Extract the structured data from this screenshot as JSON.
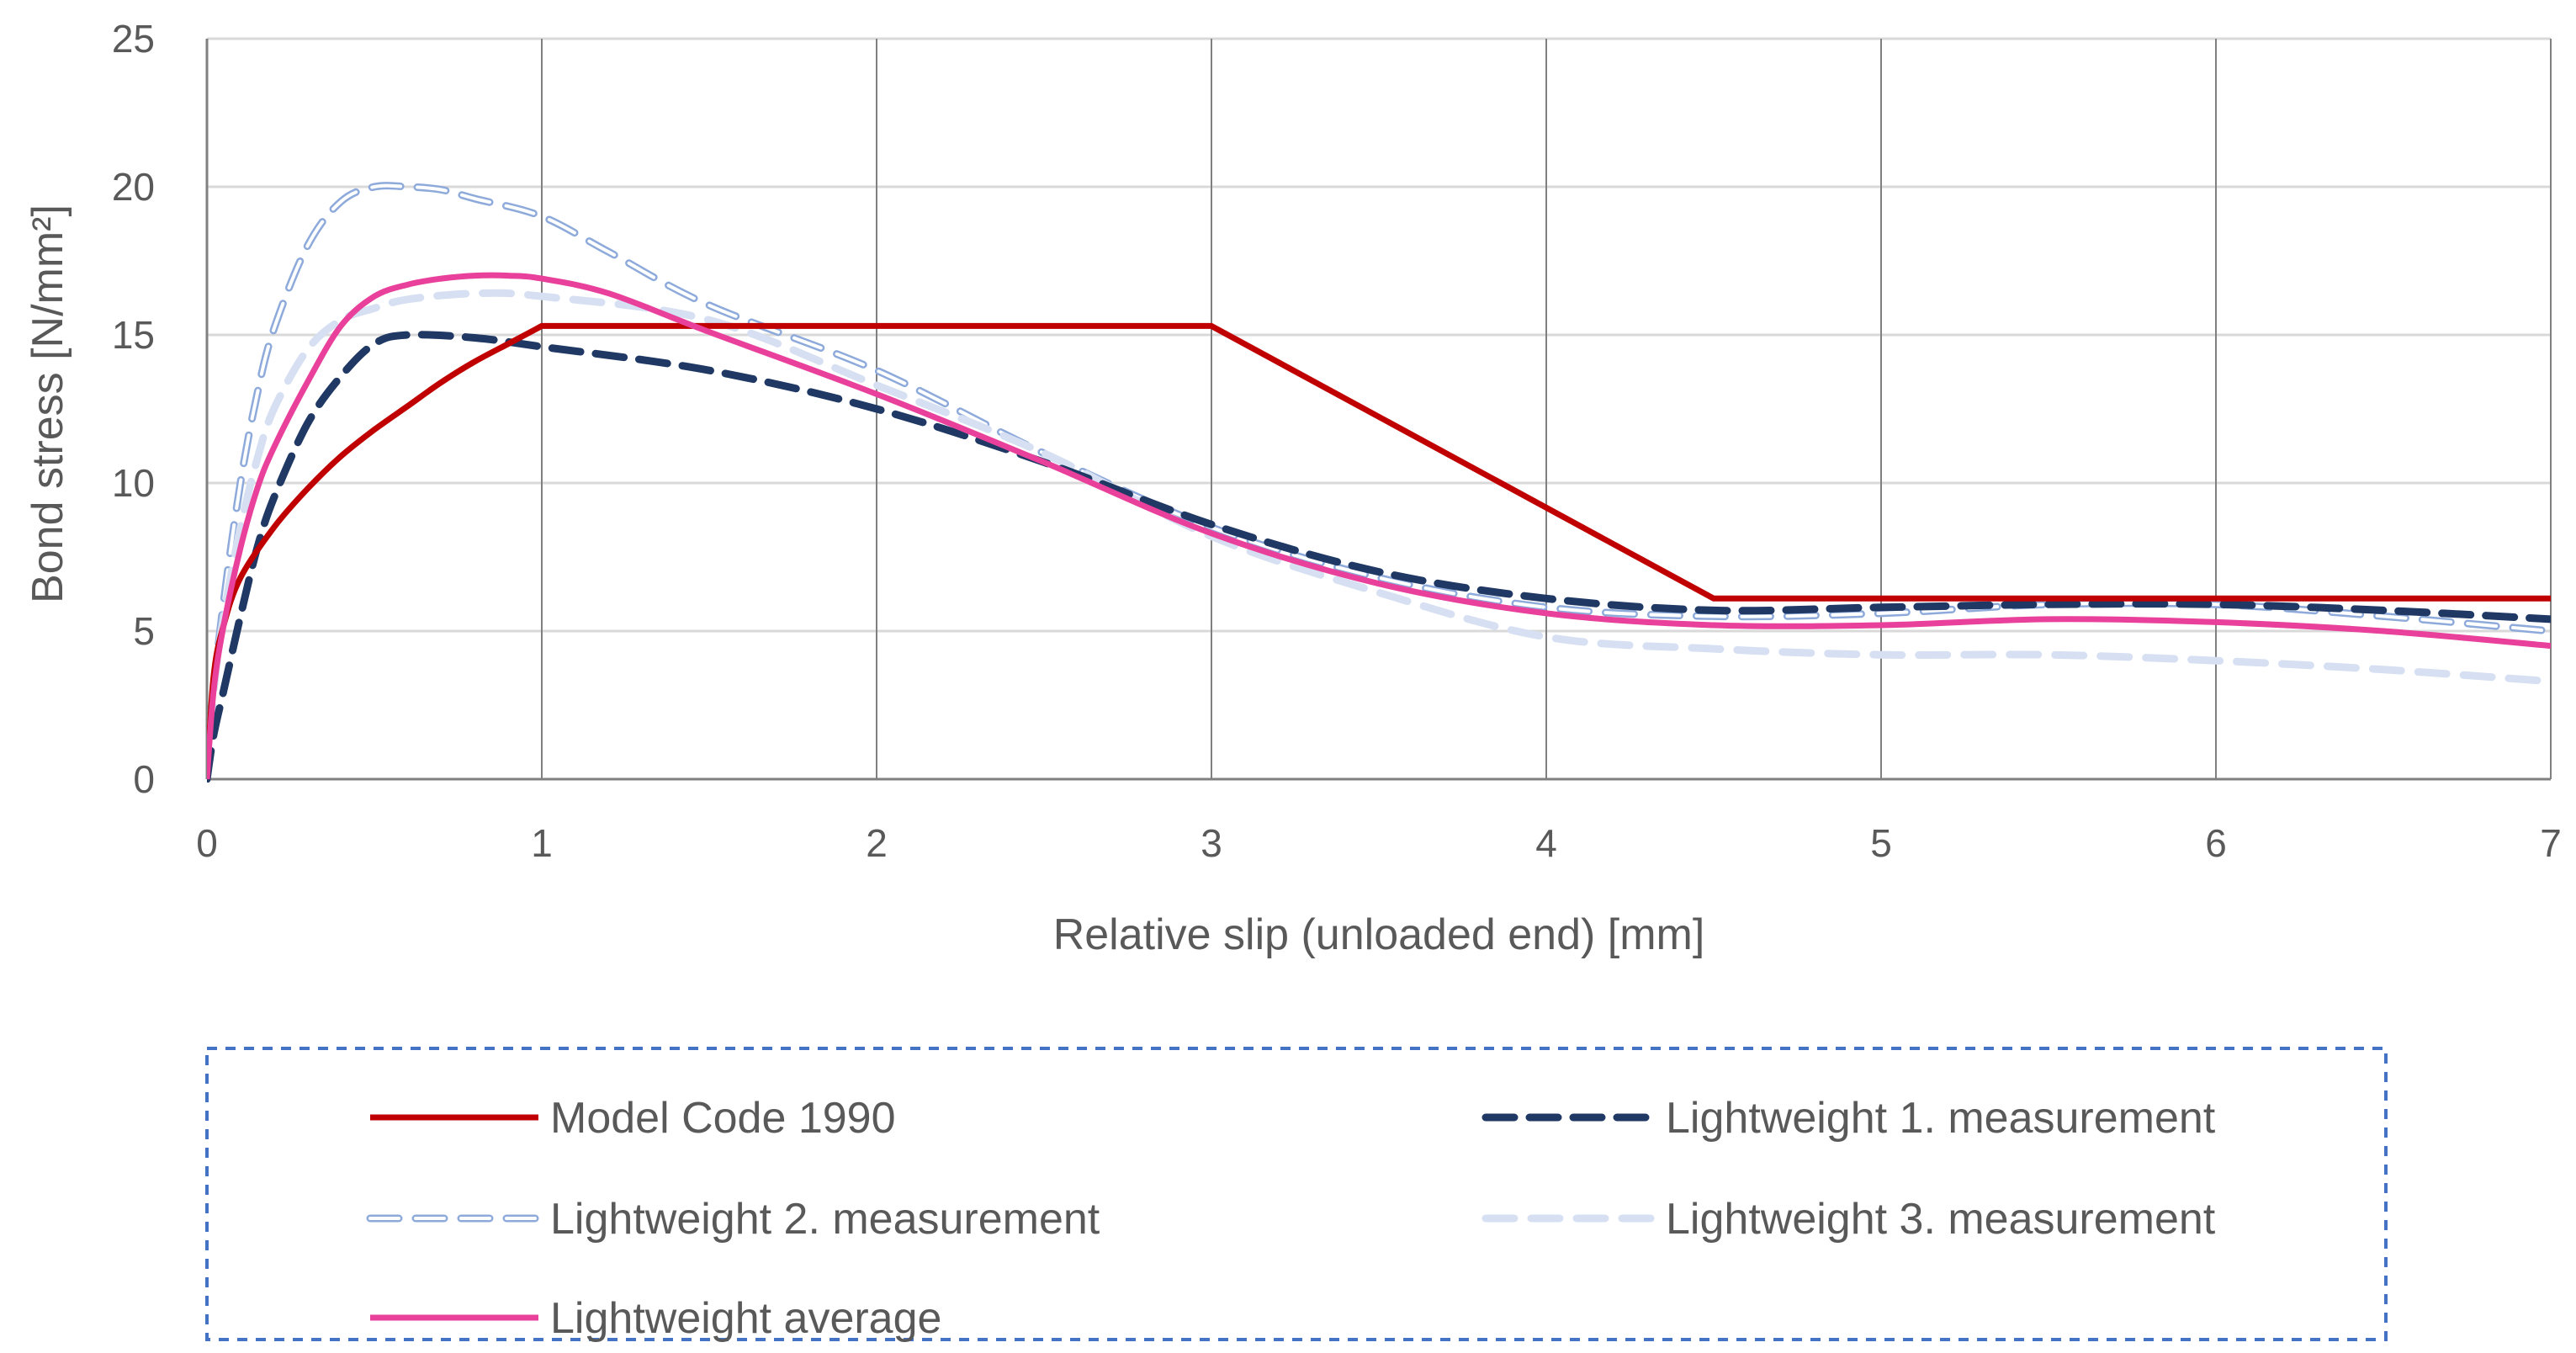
{
  "chart_data": {
    "type": "line",
    "title": "",
    "xlabel": "Relative slip (unloaded end) [mm]",
    "ylabel": "Bond stress [N/mm²]",
    "xlim": [
      0,
      7
    ],
    "ylim": [
      0,
      25
    ],
    "xticks": [
      0,
      1,
      2,
      3,
      4,
      5,
      6,
      7
    ],
    "yticks": [
      0,
      5,
      10,
      15,
      20,
      25
    ],
    "grid": "vertical and horizontal major gridlines",
    "legend_position": "bottom",
    "series": [
      {
        "name": "Model Code 1990",
        "color": "#c00000",
        "style": "solid",
        "x": [
          0,
          0.02,
          0.05,
          0.1,
          0.2,
          0.3,
          0.4,
          0.5,
          0.6,
          0.7,
          0.8,
          0.9,
          1,
          3,
          4.5,
          7
        ],
        "y": [
          0,
          3.5,
          5.2,
          6.8,
          8.5,
          9.8,
          10.9,
          11.8,
          12.6,
          13.4,
          14.1,
          14.7,
          15.3,
          15.3,
          6.1,
          6.1
        ]
      },
      {
        "name": "Lightweight 1. measurement",
        "color": "#1f3864",
        "style": "dash",
        "x": [
          0,
          0.02,
          0.05,
          0.1,
          0.15,
          0.2,
          0.3,
          0.4,
          0.5,
          0.6,
          0.8,
          1.0,
          1.5,
          2.0,
          2.5,
          3.0,
          3.5,
          4.0,
          4.5,
          5.0,
          5.5,
          6.0,
          6.5,
          7.0
        ],
        "y": [
          0,
          1.5,
          3.0,
          5.5,
          7.8,
          9.5,
          12.0,
          13.6,
          14.7,
          15.0,
          14.9,
          14.6,
          13.8,
          12.5,
          10.7,
          8.6,
          7.0,
          6.1,
          5.7,
          5.8,
          5.9,
          5.9,
          5.7,
          5.4
        ]
      },
      {
        "name": "Lightweight 2. measurement",
        "color": "#8eaadb",
        "style": "outlined-dash",
        "x": [
          0,
          0.02,
          0.05,
          0.1,
          0.15,
          0.2,
          0.3,
          0.4,
          0.5,
          0.6,
          0.7,
          0.8,
          1.0,
          1.2,
          1.5,
          2.0,
          2.5,
          3.0,
          3.5,
          4.0,
          4.5,
          5.0,
          5.5,
          6.0,
          6.5,
          7.0
        ],
        "y": [
          0,
          3.0,
          6.0,
          10.0,
          13.0,
          15.2,
          18.0,
          19.5,
          20.0,
          20.0,
          19.9,
          19.6,
          19.0,
          17.8,
          16.0,
          13.8,
          11.0,
          8.5,
          6.8,
          5.8,
          5.5,
          5.6,
          5.9,
          5.9,
          5.5,
          5.0
        ]
      },
      {
        "name": "Lightweight 3. measurement",
        "color": "#d6e0f2",
        "style": "dash",
        "x": [
          0,
          0.02,
          0.05,
          0.1,
          0.15,
          0.2,
          0.3,
          0.4,
          0.5,
          0.6,
          0.8,
          1.0,
          1.5,
          2.0,
          2.5,
          3.0,
          3.5,
          4.0,
          4.5,
          5.0,
          5.5,
          6.0,
          6.5,
          7.0
        ],
        "y": [
          0,
          3.0,
          5.5,
          8.5,
          10.8,
          12.5,
          14.5,
          15.5,
          15.9,
          16.2,
          16.4,
          16.3,
          15.5,
          13.3,
          11.0,
          8.2,
          6.3,
          4.8,
          4.4,
          4.2,
          4.2,
          4.0,
          3.7,
          3.3
        ]
      },
      {
        "name": "Lightweight average",
        "color": "#e8409b",
        "style": "solid",
        "x": [
          0,
          0.02,
          0.05,
          0.1,
          0.15,
          0.2,
          0.3,
          0.4,
          0.5,
          0.6,
          0.7,
          0.8,
          0.9,
          1.0,
          1.2,
          1.5,
          2.0,
          2.5,
          3.0,
          3.5,
          4.0,
          4.5,
          5.0,
          5.5,
          6.0,
          6.5,
          7.0
        ],
        "y": [
          0,
          3.0,
          5.2,
          7.8,
          9.8,
          11.2,
          13.4,
          15.3,
          16.3,
          16.7,
          16.9,
          17.0,
          17.0,
          16.9,
          16.4,
          15.1,
          13.0,
          10.7,
          8.3,
          6.6,
          5.6,
          5.2,
          5.2,
          5.4,
          5.3,
          5.0,
          4.5
        ]
      }
    ]
  }
}
